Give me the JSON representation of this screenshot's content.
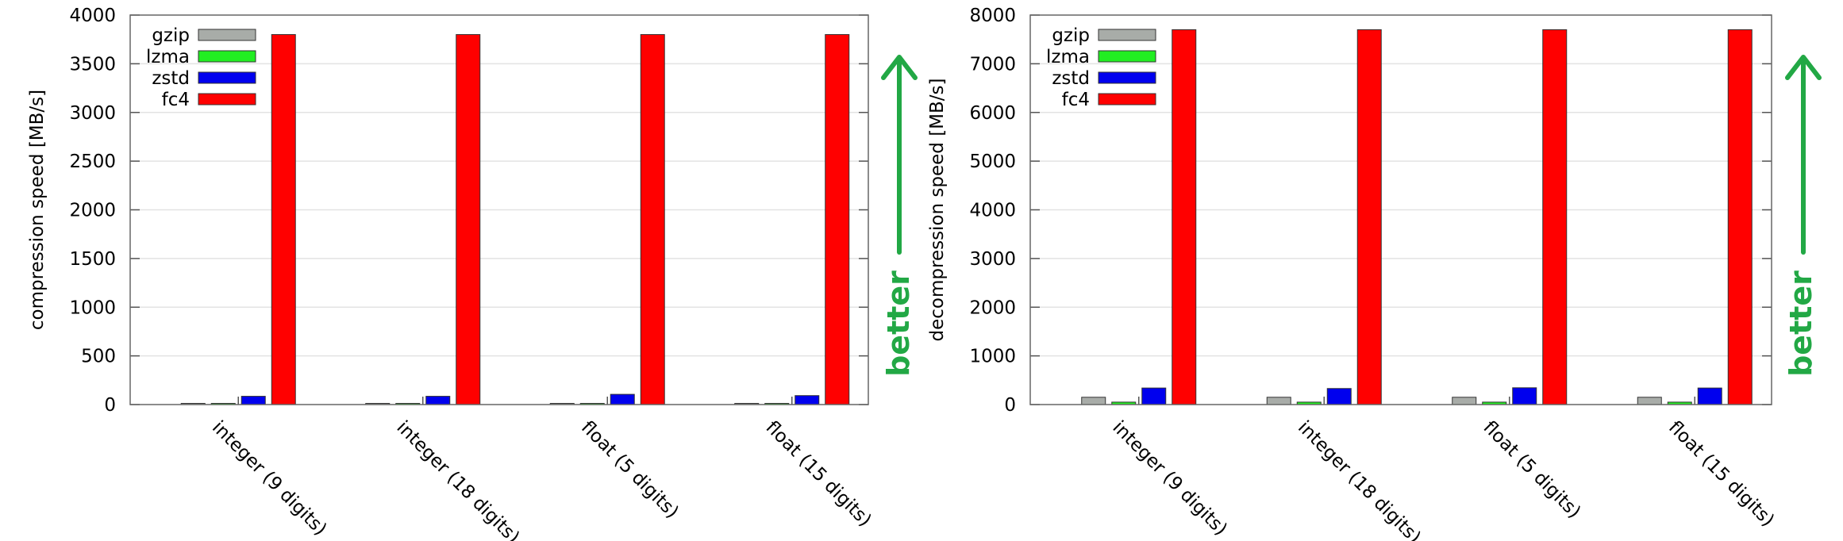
{
  "chart_data": [
    {
      "type": "bar",
      "ylabel": "compression speed [MB/s]",
      "ylim": [
        0,
        4000
      ],
      "yticks": [
        0,
        500,
        1000,
        1500,
        2000,
        2500,
        3000,
        3500,
        4000
      ],
      "grid": true,
      "legend": "top-left",
      "categories": [
        "integer (9 digits)",
        "integer (18 digits)",
        "float (5 digits)",
        "float (15 digits)"
      ],
      "series": [
        {
          "name": "gzip",
          "color": "#a8aca8",
          "values": [
            12,
            10,
            10,
            10
          ]
        },
        {
          "name": "lzma",
          "color": "#22ee22",
          "values": [
            5,
            4,
            4,
            4
          ]
        },
        {
          "name": "zstd",
          "color": "#0000ee",
          "values": [
            85,
            85,
            105,
            92
          ]
        },
        {
          "name": "fc4",
          "color": "#ff0000",
          "values": [
            3800,
            3800,
            3800,
            3800
          ]
        }
      ],
      "annotation": "better",
      "annotation_color": "#22a845"
    },
    {
      "type": "bar",
      "ylabel": "decompression speed [MB/s]",
      "ylim": [
        0,
        8000
      ],
      "yticks": [
        0,
        1000,
        2000,
        3000,
        4000,
        5000,
        6000,
        7000,
        8000
      ],
      "grid": true,
      "legend": "top-left",
      "categories": [
        "integer (9 digits)",
        "integer (18 digits)",
        "float (5 digits)",
        "float (15 digits)"
      ],
      "series": [
        {
          "name": "gzip",
          "color": "#a8aca8",
          "values": [
            150,
            150,
            150,
            150
          ]
        },
        {
          "name": "lzma",
          "color": "#22ee22",
          "values": [
            50,
            50,
            50,
            50
          ]
        },
        {
          "name": "zstd",
          "color": "#0000ee",
          "values": [
            340,
            330,
            345,
            340
          ]
        },
        {
          "name": "fc4",
          "color": "#ff0000",
          "values": [
            7700,
            7700,
            7700,
            7700
          ]
        }
      ],
      "annotation": "better",
      "annotation_color": "#22a845"
    }
  ]
}
